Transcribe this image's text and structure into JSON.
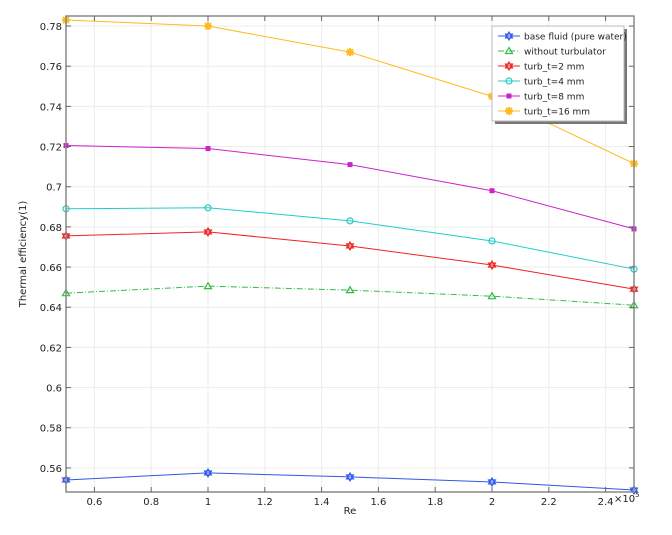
{
  "chart_data": {
    "type": "line",
    "title": "",
    "xlabel": "Re",
    "ylabel": "Thermal efficiency(1)",
    "x_multiplier_label": "×10",
    "x_multiplier_exp": "5",
    "xlim": [
      0.5,
      2.5
    ],
    "ylim": [
      0.548,
      0.785
    ],
    "grid": true,
    "legend_position": "top-right",
    "xticks": [
      0.6,
      0.8,
      1,
      1.2,
      1.4,
      1.6,
      1.8,
      2,
      2.2,
      2.4
    ],
    "xtick_labels": [
      "0.6",
      "0.8",
      "1",
      "1.2",
      "1.4",
      "1.6",
      "1.8",
      "2",
      "2.2",
      "2.4"
    ],
    "yticks": [
      0.56,
      0.58,
      0.6,
      0.62,
      0.64,
      0.66,
      0.68,
      0.7,
      0.72,
      0.74,
      0.76,
      0.78
    ],
    "ytick_labels": [
      "0.56",
      "0.58",
      "0.6",
      "0.62",
      "0.64",
      "0.66",
      "0.68",
      "0.7",
      "0.72",
      "0.74",
      "0.76",
      "0.78"
    ],
    "x": [
      0.5,
      1,
      1.5,
      2,
      2.5
    ],
    "series": [
      {
        "name": "base fluid (pure water)",
        "color": "#3355ee",
        "marker": "hexagram",
        "dash": "",
        "values": [
          0.554,
          0.5575,
          0.5555,
          0.553,
          0.549
        ]
      },
      {
        "name": "without turbulator",
        "color": "#33bb44",
        "marker": "triangle",
        "dash": "6 2 1 2",
        "values": [
          0.647,
          0.6505,
          0.6485,
          0.6455,
          0.641
        ]
      },
      {
        "name": "turb_t=2 mm",
        "color": "#ee2222",
        "marker": "hexagram",
        "dash": "",
        "values": [
          0.6755,
          0.6775,
          0.6705,
          0.661,
          0.649
        ]
      },
      {
        "name": "turb_t=4 mm",
        "color": "#22cccc",
        "marker": "circle",
        "dash": "",
        "values": [
          0.689,
          0.6895,
          0.683,
          0.673,
          0.659
        ]
      },
      {
        "name": "turb_t=8 mm",
        "color": "#cc22cc",
        "marker": "square",
        "dash": "",
        "values": [
          0.7205,
          0.719,
          0.711,
          0.698,
          0.679
        ]
      },
      {
        "name": "turb_t=16 mm",
        "color": "#ffbb22",
        "marker": "star",
        "dash": "",
        "values": [
          0.783,
          0.78,
          0.767,
          0.745,
          0.7115
        ]
      }
    ]
  }
}
